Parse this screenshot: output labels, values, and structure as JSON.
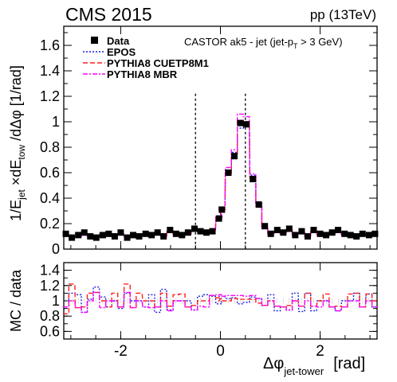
{
  "header": {
    "experiment": "CMS 2015",
    "energy": "pp (13TeV)"
  },
  "chart_data": [
    {
      "type": "line",
      "panel": "main",
      "annotation": "CASTOR ak5 - jet (jet-p",
      "annotation_sub": "T",
      "annotation_tail": " > 3 GeV)",
      "ylabel_parts": [
        "1/E",
        "jet",
        " ×dE",
        "tow",
        " /dΔφ [1/rad]"
      ],
      "ylim": [
        0,
        1.75
      ],
      "xlim": [
        -3.1416,
        3.1416
      ],
      "yticks": [
        0,
        0.2,
        0.4,
        0.6,
        0.8,
        1,
        1.2,
        1.4,
        1.6
      ],
      "ytick_labels": [
        "0",
        "0.2",
        "0.4",
        "0.6",
        "0.8",
        "1",
        "1.2",
        "1.4",
        "1.6"
      ],
      "xticks": [
        -2,
        0,
        2
      ],
      "vlines": [
        -0.5,
        0.5
      ],
      "grid": false,
      "legend_placement": "top-left",
      "colors": {
        "data": "#000000",
        "epos": "#1f1fe0",
        "pythia_cuetp8m1": "#ff2020",
        "pythia_mbr": "#ff00ff"
      },
      "x": [
        -3.1,
        -2.98,
        -2.85,
        -2.73,
        -2.61,
        -2.49,
        -2.36,
        -2.24,
        -2.12,
        -2.0,
        -1.87,
        -1.75,
        -1.63,
        -1.5,
        -1.38,
        -1.26,
        -1.14,
        -1.01,
        -0.89,
        -0.77,
        -0.65,
        -0.52,
        -0.4,
        -0.28,
        -0.16,
        -0.03,
        0.03,
        0.16,
        0.28,
        0.4,
        0.52,
        0.65,
        0.77,
        0.89,
        1.01,
        1.14,
        1.26,
        1.38,
        1.5,
        1.63,
        1.75,
        1.87,
        2.0,
        2.12,
        2.24,
        2.36,
        2.49,
        2.61,
        2.73,
        2.85,
        2.98,
        3.1
      ],
      "series": [
        {
          "name": "Data",
          "style": "markers",
          "values": [
            0.12,
            0.09,
            0.11,
            0.13,
            0.1,
            0.09,
            0.11,
            0.12,
            0.1,
            0.13,
            0.09,
            0.11,
            0.1,
            0.12,
            0.11,
            0.13,
            0.1,
            0.15,
            0.12,
            0.11,
            0.13,
            0.16,
            0.14,
            0.13,
            0.14,
            0.24,
            0.31,
            0.6,
            0.73,
            0.99,
            0.98,
            0.55,
            0.35,
            0.18,
            0.12,
            0.15,
            0.13,
            0.16,
            0.11,
            0.14,
            0.1,
            0.15,
            0.12,
            0.11,
            0.13,
            0.15,
            0.12,
            0.11,
            0.1,
            0.12,
            0.11,
            0.12
          ]
        },
        {
          "name": "EPOS",
          "style": "dotted",
          "values": [
            0.11,
            0.1,
            0.12,
            0.11,
            0.1,
            0.11,
            0.12,
            0.11,
            0.1,
            0.12,
            0.1,
            0.11,
            0.1,
            0.11,
            0.12,
            0.11,
            0.12,
            0.13,
            0.12,
            0.11,
            0.13,
            0.14,
            0.15,
            0.14,
            0.15,
            0.23,
            0.33,
            0.62,
            0.76,
            0.95,
            0.96,
            0.58,
            0.36,
            0.17,
            0.13,
            0.13,
            0.12,
            0.14,
            0.12,
            0.12,
            0.11,
            0.13,
            0.12,
            0.11,
            0.12,
            0.13,
            0.12,
            0.11,
            0.11,
            0.11,
            0.12,
            0.11
          ]
        },
        {
          "name": "PYTHIA8 CUETP8M1",
          "style": "dashed",
          "values": [
            0.1,
            0.11,
            0.1,
            0.12,
            0.11,
            0.1,
            0.11,
            0.11,
            0.11,
            0.12,
            0.11,
            0.1,
            0.11,
            0.12,
            0.11,
            0.12,
            0.11,
            0.14,
            0.13,
            0.12,
            0.12,
            0.15,
            0.14,
            0.13,
            0.15,
            0.25,
            0.31,
            0.6,
            0.75,
            1.01,
            1.0,
            0.56,
            0.34,
            0.17,
            0.12,
            0.14,
            0.12,
            0.15,
            0.11,
            0.13,
            0.11,
            0.14,
            0.12,
            0.12,
            0.12,
            0.14,
            0.11,
            0.12,
            0.11,
            0.11,
            0.12,
            0.12
          ]
        },
        {
          "name": "PYTHIA8 MBR",
          "style": "dashdot",
          "values": [
            0.11,
            0.09,
            0.1,
            0.11,
            0.1,
            0.1,
            0.1,
            0.12,
            0.1,
            0.12,
            0.1,
            0.1,
            0.1,
            0.11,
            0.1,
            0.12,
            0.1,
            0.13,
            0.12,
            0.11,
            0.12,
            0.14,
            0.13,
            0.12,
            0.15,
            0.26,
            0.33,
            0.64,
            0.78,
            1.06,
            1.04,
            0.59,
            0.36,
            0.17,
            0.12,
            0.14,
            0.12,
            0.14,
            0.11,
            0.13,
            0.1,
            0.14,
            0.11,
            0.11,
            0.12,
            0.13,
            0.11,
            0.11,
            0.1,
            0.11,
            0.11,
            0.11
          ]
        }
      ]
    },
    {
      "type": "line",
      "panel": "ratio",
      "ylabel": "MC / data",
      "xlabel_main": "Δφ",
      "xlabel_sub": "jet-tower",
      "xlabel_unit": "[rad]",
      "ylim": [
        0.5,
        1.5
      ],
      "xlim": [
        -3.1416,
        3.1416
      ],
      "yticks": [
        0.6,
        0.8,
        1,
        1.2,
        1.4
      ],
      "ytick_labels": [
        "0.6",
        "0.8",
        "1",
        "1.2",
        "1.4"
      ],
      "xticks": [
        -2,
        0,
        2
      ],
      "xtick_labels": [
        "-2",
        "0",
        "2"
      ],
      "reference": 1,
      "colors": {
        "data": "#000000",
        "epos": "#1f1fe0",
        "pythia_cuetp8m1": "#ff2020",
        "pythia_mbr": "#ff00ff"
      },
      "x": [
        -3.1,
        -2.98,
        -2.85,
        -2.73,
        -2.61,
        -2.49,
        -2.36,
        -2.24,
        -2.12,
        -2.0,
        -1.87,
        -1.75,
        -1.63,
        -1.5,
        -1.38,
        -1.26,
        -1.14,
        -1.01,
        -0.89,
        -0.77,
        -0.65,
        -0.52,
        -0.4,
        -0.28,
        -0.16,
        -0.03,
        0.03,
        0.16,
        0.28,
        0.4,
        0.52,
        0.65,
        0.77,
        0.89,
        1.01,
        1.14,
        1.26,
        1.38,
        1.5,
        1.63,
        1.75,
        1.87,
        2.0,
        2.12,
        2.24,
        2.36,
        2.49,
        2.61,
        2.73,
        2.85,
        2.98,
        3.1
      ],
      "series": [
        {
          "name": "EPOS",
          "style": "dotted",
          "values": [
            0.92,
            1.1,
            1.08,
            0.85,
            1.02,
            1.18,
            1.05,
            0.92,
            1.0,
            0.9,
            1.1,
            1.0,
            1.0,
            0.92,
            1.08,
            0.85,
            1.15,
            0.88,
            1.0,
            1.0,
            1.0,
            0.88,
            1.06,
            1.08,
            1.06,
            0.96,
            1.06,
            1.03,
            1.04,
            0.96,
            0.98,
            1.05,
            1.03,
            0.94,
            1.08,
            0.87,
            0.92,
            0.88,
            1.1,
            0.86,
            1.1,
            0.87,
            1.0,
            1.0,
            0.92,
            0.87,
            1.0,
            1.0,
            1.1,
            0.92,
            1.09,
            0.92
          ]
        },
        {
          "name": "PYTHIA8 CUETP8M1",
          "style": "dashed",
          "values": [
            0.83,
            1.22,
            0.91,
            0.92,
            1.1,
            1.11,
            1.0,
            0.92,
            1.1,
            0.92,
            1.22,
            0.91,
            1.1,
            1.0,
            1.0,
            0.92,
            1.1,
            0.93,
            1.08,
            1.09,
            0.92,
            0.94,
            1.0,
            1.0,
            1.07,
            1.04,
            1.0,
            1.0,
            1.03,
            1.02,
            1.02,
            1.02,
            0.97,
            0.94,
            1.0,
            0.93,
            0.92,
            0.94,
            1.0,
            0.93,
            1.1,
            0.93,
            1.0,
            1.09,
            0.92,
            0.93,
            0.92,
            1.09,
            1.1,
            0.92,
            1.09,
            1.0
          ]
        },
        {
          "name": "PYTHIA8 MBR",
          "style": "dashdot",
          "values": [
            0.92,
            1.0,
            0.91,
            0.85,
            1.0,
            1.11,
            0.91,
            1.0,
            1.0,
            0.92,
            1.11,
            0.91,
            1.0,
            0.92,
            0.91,
            0.92,
            1.0,
            0.87,
            1.0,
            1.0,
            0.92,
            0.88,
            0.93,
            0.92,
            1.07,
            1.08,
            1.06,
            1.07,
            1.07,
            1.07,
            1.06,
            1.07,
            1.03,
            0.94,
            1.0,
            0.93,
            0.92,
            0.88,
            1.0,
            0.93,
            1.0,
            0.93,
            0.92,
            1.0,
            0.92,
            0.87,
            0.92,
            1.0,
            1.0,
            0.92,
            1.0,
            0.92
          ]
        }
      ]
    }
  ]
}
